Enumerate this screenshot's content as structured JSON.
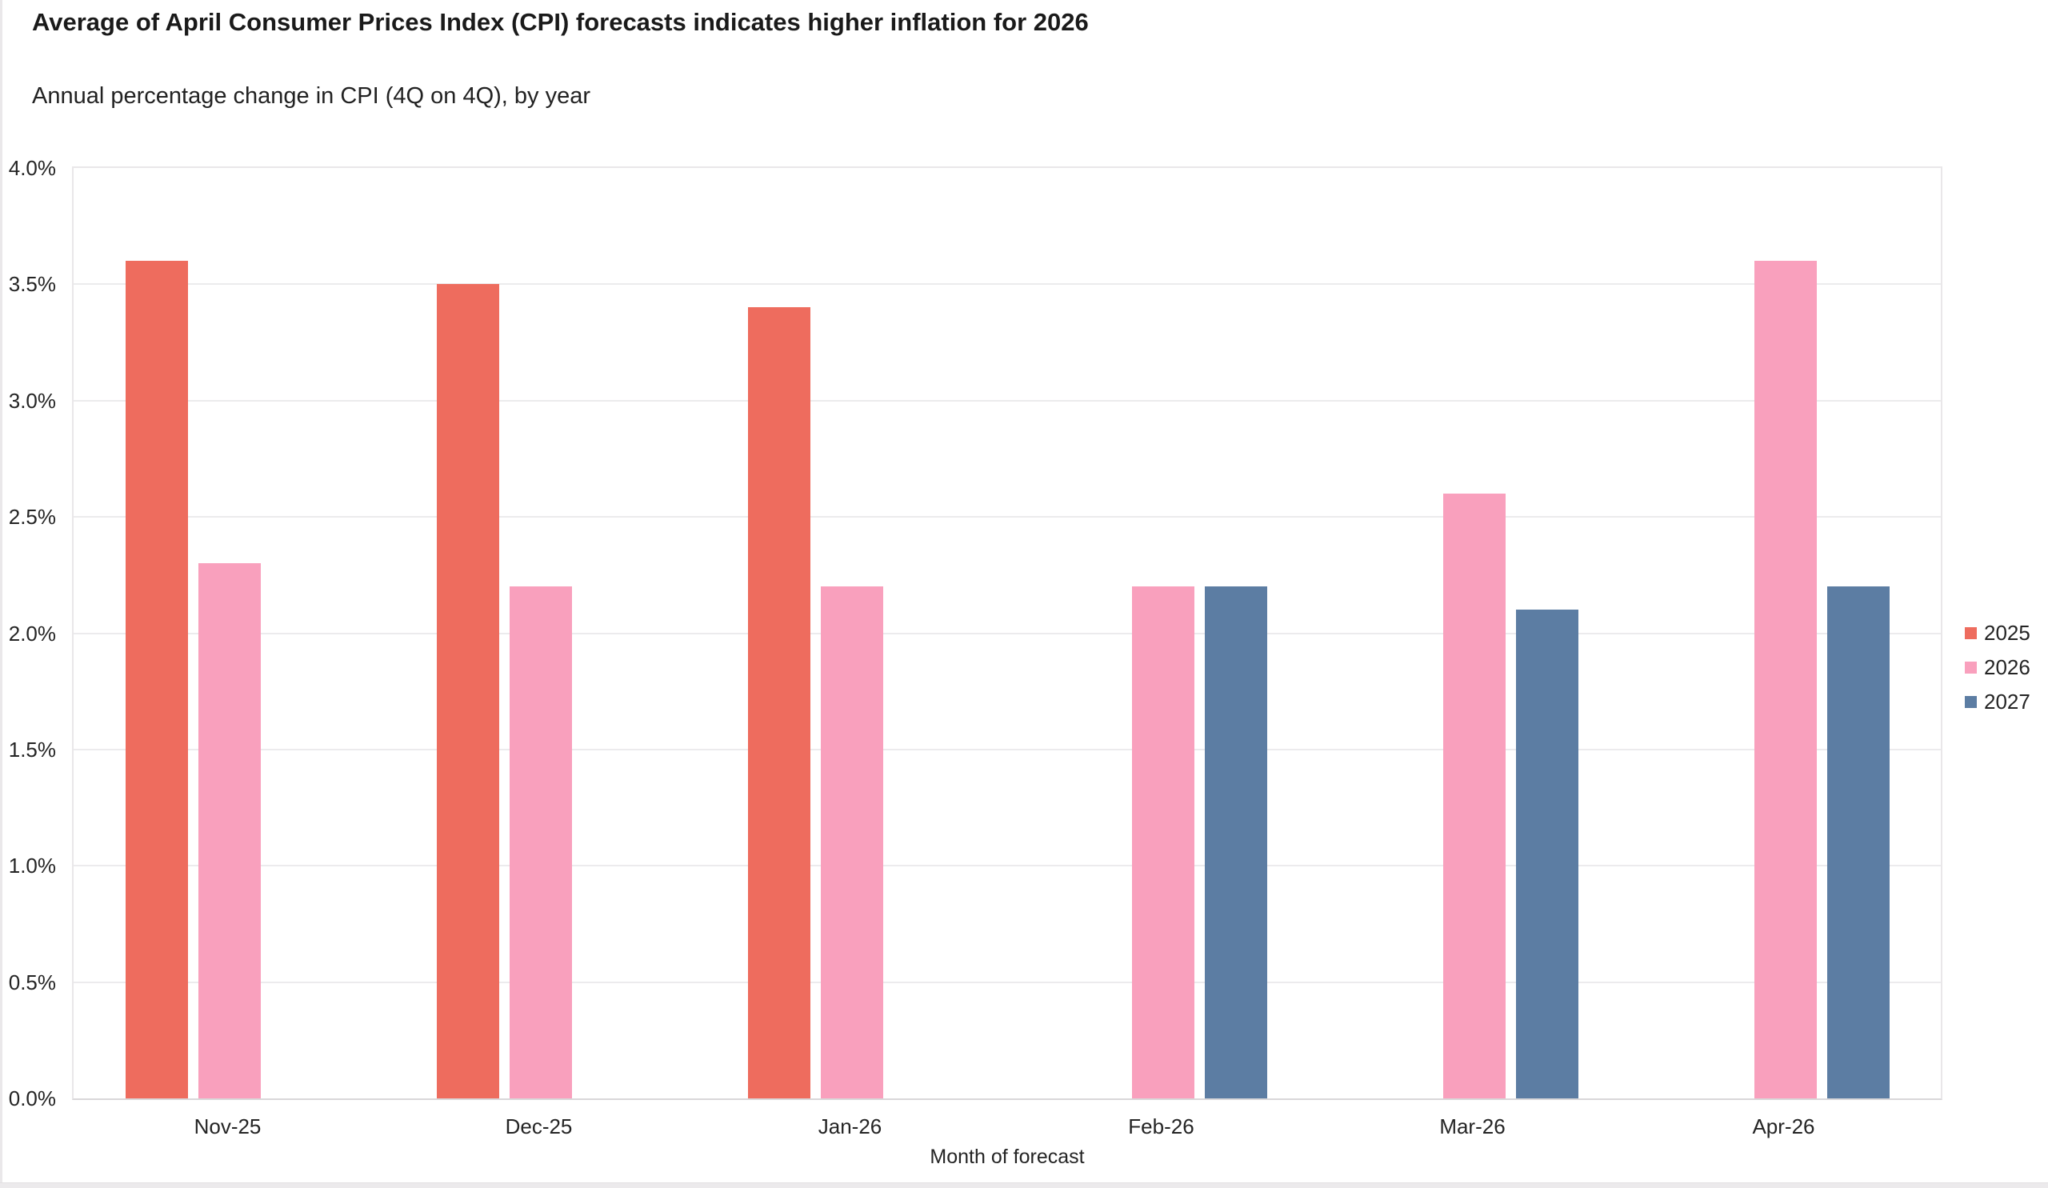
{
  "chart_data": {
    "type": "bar",
    "title": "Average of April Consumer Prices Index (CPI) forecasts indicates higher inflation for 2026",
    "subtitle": "Annual percentage change in CPI (4Q on 4Q), by year",
    "xlabel": "Month of forecast",
    "ylabel": "",
    "categories": [
      "Nov-25",
      "Dec-25",
      "Jan-26",
      "Feb-26",
      "Mar-26",
      "Apr-26"
    ],
    "series": [
      {
        "name": "2025",
        "color": "#ee6c5e",
        "values": [
          3.6,
          3.5,
          3.4,
          null,
          null,
          null
        ]
      },
      {
        "name": "2026",
        "color": "#f9a0bd",
        "values": [
          2.3,
          2.2,
          2.2,
          2.2,
          2.6,
          3.6
        ]
      },
      {
        "name": "2027",
        "color": "#5c7da3",
        "values": [
          null,
          null,
          null,
          2.2,
          2.1,
          2.2
        ]
      }
    ],
    "ylim": [
      0,
      4
    ],
    "yticks": [
      {
        "label": "0.0%",
        "value": 0.0
      },
      {
        "label": "0.5%",
        "value": 0.5
      },
      {
        "label": "1.0%",
        "value": 1.0
      },
      {
        "label": "1.5%",
        "value": 1.5
      },
      {
        "label": "2.0%",
        "value": 2.0
      },
      {
        "label": "2.5%",
        "value": 2.5
      },
      {
        "label": "3.0%",
        "value": 3.0
      },
      {
        "label": "3.5%",
        "value": 3.5
      },
      {
        "label": "4.0%",
        "value": 4.0
      }
    ],
    "grid": true,
    "legend_position": "right",
    "colors": {
      "gridline": "#ecebed",
      "plot_border": "#e9e7e9",
      "axis_line": "#d9d7d9"
    }
  }
}
